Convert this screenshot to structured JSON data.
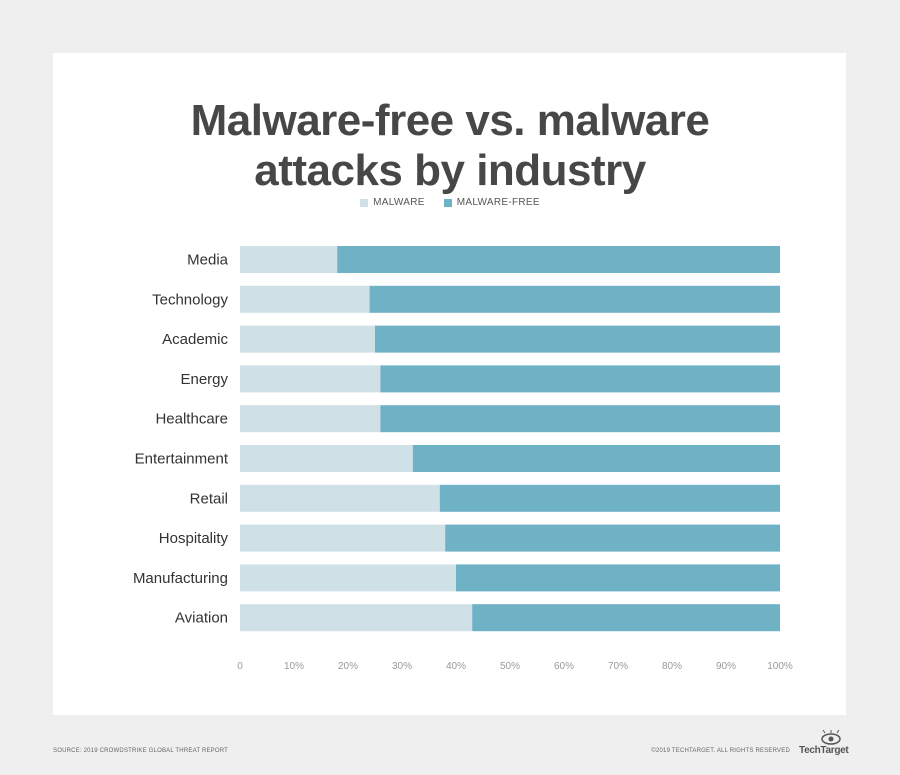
{
  "title_line1": "Malware-free vs. malware",
  "title_line2": "attacks by industry",
  "source": "SOURCE: 2019 CROWDSTRIKE GLOBAL THREAT REPORT",
  "copyright": "©2019 TECHTARGET. ALL RIGHTS RESERVED",
  "brand": "TechTarget",
  "colors": {
    "malware": "#cfe0e7",
    "malware_free": "#6fb1c5",
    "text": "#474747"
  },
  "chart_data": {
    "type": "bar",
    "orientation": "horizontal",
    "stacked": true,
    "title": "Malware-free vs. malware attacks by industry",
    "categories": [
      "Media",
      "Technology",
      "Academic",
      "Energy",
      "Healthcare",
      "Entertainment",
      "Retail",
      "Hospitality",
      "Manufacturing",
      "Aviation"
    ],
    "series": [
      {
        "name": "MALWARE",
        "values": [
          18,
          24,
          25,
          26,
          26,
          32,
          37,
          38,
          40,
          43
        ]
      },
      {
        "name": "MALWARE-FREE",
        "values": [
          82,
          76,
          75,
          74,
          74,
          68,
          63,
          62,
          60,
          57
        ]
      }
    ],
    "x_ticks": [
      "0",
      "10%",
      "20%",
      "30%",
      "40%",
      "50%",
      "60%",
      "70%",
      "80%",
      "90%",
      "100%"
    ],
    "xlim": [
      0,
      100
    ],
    "legend_position": "top-center",
    "grid": false
  }
}
